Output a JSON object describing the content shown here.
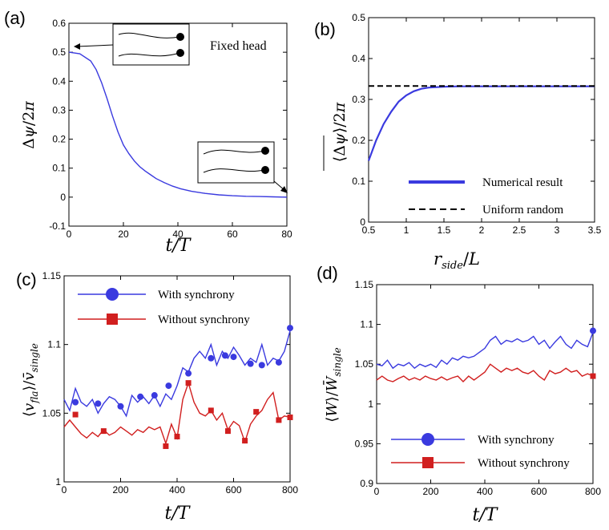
{
  "chart_data": [
    {
      "panel": "(a)",
      "type": "line",
      "annotation": "Fixed head",
      "xlabel": "t/T",
      "ylabel": "Δψ/2π",
      "xlim": [
        0,
        80
      ],
      "ylim": [
        -0.1,
        0.6
      ],
      "xticks": [
        "0",
        "20",
        "40",
        "60",
        "80"
      ],
      "yticks": [
        "-0.1",
        "0",
        "0.1",
        "0.2",
        "0.3",
        "0.4",
        "0.5",
        "0.6"
      ],
      "series": [
        {
          "name": "phase difference",
          "color": "#3a3adf",
          "x": [
            0,
            4,
            8,
            10,
            12,
            14,
            16,
            18,
            20,
            22,
            24,
            26,
            28,
            30,
            32,
            35,
            38,
            41,
            45,
            50,
            55,
            60,
            65,
            70,
            75,
            80
          ],
          "y": [
            0.5,
            0.495,
            0.47,
            0.44,
            0.395,
            0.34,
            0.28,
            0.225,
            0.18,
            0.15,
            0.125,
            0.105,
            0.09,
            0.077,
            0.064,
            0.05,
            0.038,
            0.029,
            0.02,
            0.013,
            0.008,
            0.005,
            0.003,
            0.002,
            0.001,
            0.0
          ]
        }
      ]
    },
    {
      "panel": "(b)",
      "type": "line",
      "xlabel": "r_side/L",
      "ylabel": "⟨Δψ⟩/2π",
      "xlim": [
        0.5,
        3.5
      ],
      "ylim": [
        0,
        0.5
      ],
      "xticks": [
        "0.5",
        "1",
        "1.5",
        "2",
        "2.5",
        "3",
        "3.5"
      ],
      "yticks": [
        "0",
        "0.1",
        "0.2",
        "0.3",
        "0.4",
        "0.5"
      ],
      "series": [
        {
          "name": "Numerical result",
          "color": "#3a3adf",
          "x": [
            0.5,
            0.6,
            0.7,
            0.8,
            0.9,
            1.0,
            1.1,
            1.2,
            1.3,
            1.5,
            1.7,
            2.0,
            2.5,
            3.0,
            3.5
          ],
          "y": [
            0.15,
            0.2,
            0.24,
            0.27,
            0.295,
            0.31,
            0.32,
            0.326,
            0.329,
            0.331,
            0.332,
            0.332,
            0.332,
            0.332,
            0.332
          ]
        },
        {
          "name": "Uniform random",
          "color": "#000000",
          "dashed": true,
          "x": [
            0.5,
            3.5
          ],
          "y": [
            0.333,
            0.333
          ]
        }
      ]
    },
    {
      "panel": "(c)",
      "type": "line",
      "xlabel": "t/T",
      "ylabel": "⟨v_fla⟩/v̄_single",
      "xlim": [
        0,
        800
      ],
      "ylim": [
        1,
        1.15
      ],
      "xticks": [
        "0",
        "200",
        "400",
        "600",
        "800"
      ],
      "yticks": [
        "1",
        "1.05",
        "1.1",
        "1.15"
      ],
      "series": [
        {
          "name": "With synchrony",
          "color": "#3a3adf",
          "marker": "circle",
          "x": [
            0,
            20,
            40,
            60,
            80,
            100,
            120,
            140,
            160,
            180,
            200,
            220,
            240,
            260,
            280,
            300,
            320,
            340,
            360,
            380,
            400,
            420,
            440,
            460,
            480,
            500,
            520,
            540,
            560,
            580,
            600,
            620,
            640,
            660,
            680,
            700,
            720,
            740,
            760,
            780,
            800
          ],
          "y": [
            1.06,
            1.052,
            1.068,
            1.058,
            1.055,
            1.06,
            1.05,
            1.057,
            1.062,
            1.06,
            1.055,
            1.048,
            1.063,
            1.058,
            1.062,
            1.057,
            1.063,
            1.055,
            1.064,
            1.06,
            1.07,
            1.083,
            1.08,
            1.09,
            1.095,
            1.09,
            1.1,
            1.085,
            1.095,
            1.09,
            1.098,
            1.092,
            1.085,
            1.09,
            1.087,
            1.1,
            1.085,
            1.09,
            1.088,
            1.095,
            1.11
          ],
          "marker_x": [
            40,
            120,
            200,
            270,
            320,
            370,
            440,
            520,
            570,
            600,
            660,
            700,
            760,
            800
          ],
          "marker_y": [
            1.058,
            1.057,
            1.055,
            1.062,
            1.063,
            1.07,
            1.079,
            1.09,
            1.092,
            1.091,
            1.086,
            1.085,
            1.087,
            1.112
          ]
        },
        {
          "name": "Without synchrony",
          "color": "#d11f1f",
          "marker": "square",
          "x": [
            0,
            20,
            40,
            60,
            80,
            100,
            120,
            140,
            160,
            180,
            200,
            220,
            240,
            260,
            280,
            300,
            320,
            340,
            360,
            380,
            400,
            420,
            440,
            460,
            480,
            500,
            520,
            540,
            560,
            580,
            600,
            620,
            640,
            660,
            680,
            700,
            720,
            740,
            760,
            780,
            800
          ],
          "y": [
            1.04,
            1.045,
            1.04,
            1.035,
            1.032,
            1.036,
            1.033,
            1.038,
            1.034,
            1.036,
            1.04,
            1.037,
            1.034,
            1.038,
            1.036,
            1.04,
            1.038,
            1.04,
            1.028,
            1.042,
            1.032,
            1.06,
            1.072,
            1.058,
            1.05,
            1.048,
            1.052,
            1.045,
            1.05,
            1.038,
            1.044,
            1.041,
            1.029,
            1.042,
            1.048,
            1.052,
            1.06,
            1.065,
            1.045,
            1.048,
            1.047
          ],
          "marker_x": [
            40,
            140,
            360,
            400,
            440,
            520,
            580,
            640,
            680,
            760,
            800
          ],
          "marker_y": [
            1.049,
            1.037,
            1.026,
            1.033,
            1.072,
            1.052,
            1.037,
            1.03,
            1.051,
            1.045,
            1.047
          ]
        }
      ]
    },
    {
      "panel": "(d)",
      "type": "line",
      "xlabel": "t/T",
      "ylabel": "⟨W⟩/W̄_single",
      "xlim": [
        0,
        800
      ],
      "ylim": [
        0.9,
        1.15
      ],
      "xticks": [
        "0",
        "200",
        "400",
        "600",
        "800"
      ],
      "yticks": [
        "0.9",
        "0.95",
        "1",
        "1.05",
        "1.1",
        "1.15"
      ],
      "series": [
        {
          "name": "With synchrony",
          "color": "#3a3adf",
          "marker": "circle",
          "x": [
            0,
            20,
            40,
            60,
            80,
            100,
            120,
            140,
            160,
            180,
            200,
            220,
            240,
            260,
            280,
            300,
            320,
            340,
            360,
            380,
            400,
            420,
            440,
            460,
            480,
            500,
            520,
            540,
            560,
            580,
            600,
            620,
            640,
            660,
            680,
            700,
            720,
            740,
            760,
            780,
            800
          ],
          "y": [
            1.05,
            1.048,
            1.055,
            1.045,
            1.05,
            1.048,
            1.052,
            1.045,
            1.05,
            1.047,
            1.05,
            1.046,
            1.055,
            1.05,
            1.058,
            1.055,
            1.06,
            1.058,
            1.06,
            1.065,
            1.07,
            1.08,
            1.085,
            1.075,
            1.08,
            1.078,
            1.082,
            1.078,
            1.08,
            1.085,
            1.075,
            1.08,
            1.07,
            1.078,
            1.085,
            1.075,
            1.07,
            1.08,
            1.075,
            1.072,
            1.09
          ],
          "marker_x": [
            800
          ],
          "marker_y": [
            1.092
          ]
        },
        {
          "name": "Without synchrony",
          "color": "#d11f1f",
          "marker": "square",
          "x": [
            0,
            20,
            40,
            60,
            80,
            100,
            120,
            140,
            160,
            180,
            200,
            220,
            240,
            260,
            280,
            300,
            320,
            340,
            360,
            380,
            400,
            420,
            440,
            460,
            480,
            500,
            520,
            540,
            560,
            580,
            600,
            620,
            640,
            660,
            680,
            700,
            720,
            740,
            760,
            780,
            800
          ],
          "y": [
            1.03,
            1.035,
            1.03,
            1.028,
            1.032,
            1.035,
            1.03,
            1.033,
            1.03,
            1.035,
            1.032,
            1.03,
            1.034,
            1.03,
            1.033,
            1.035,
            1.028,
            1.035,
            1.03,
            1.035,
            1.04,
            1.05,
            1.045,
            1.04,
            1.045,
            1.042,
            1.045,
            1.04,
            1.038,
            1.042,
            1.035,
            1.03,
            1.042,
            1.038,
            1.04,
            1.045,
            1.04,
            1.042,
            1.035,
            1.038,
            1.035
          ],
          "marker_x": [
            800
          ],
          "marker_y": [
            1.035
          ]
        }
      ]
    }
  ]
}
